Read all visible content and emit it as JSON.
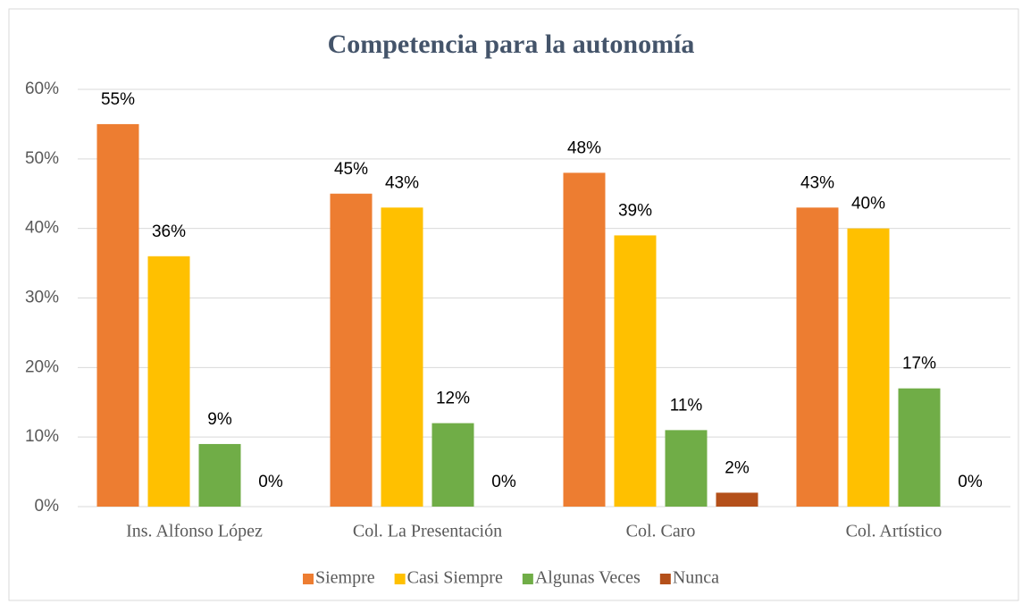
{
  "chart_data": {
    "type": "bar",
    "title": "Competencia para la autonomía",
    "categories": [
      "Ins. Alfonso López",
      "Col. La Presentación",
      "Col. Caro",
      "Col. Artístico"
    ],
    "series": [
      {
        "name": "Siempre",
        "color": "#ed7d31",
        "values": [
          55,
          45,
          48,
          43
        ],
        "value_labels": [
          "55%",
          "45%",
          "48%",
          "43%"
        ]
      },
      {
        "name": "Casi Siempre",
        "color": "#ffc000",
        "values": [
          36,
          43,
          39,
          40
        ],
        "value_labels": [
          "36%",
          "43%",
          "39%",
          "40%"
        ]
      },
      {
        "name": "Algunas Veces",
        "color": "#70ad47",
        "values": [
          9,
          12,
          11,
          17
        ],
        "value_labels": [
          "9%",
          "12%",
          "11%",
          "17%"
        ]
      },
      {
        "name": "Nunca",
        "color": "#b4501a",
        "values": [
          0,
          0,
          2,
          0
        ],
        "value_labels": [
          "0%",
          "0%",
          "2%",
          "0%"
        ]
      }
    ],
    "ylim": [
      0,
      60
    ],
    "yticks": [
      {
        "value": 0,
        "label": "0%"
      },
      {
        "value": 10,
        "label": "10%"
      },
      {
        "value": 20,
        "label": "20%"
      },
      {
        "value": 30,
        "label": "30%"
      },
      {
        "value": 40,
        "label": "40%"
      },
      {
        "value": 50,
        "label": "50%"
      },
      {
        "value": 60,
        "label": "60%"
      }
    ],
    "grid": true,
    "legend": "bottom"
  }
}
